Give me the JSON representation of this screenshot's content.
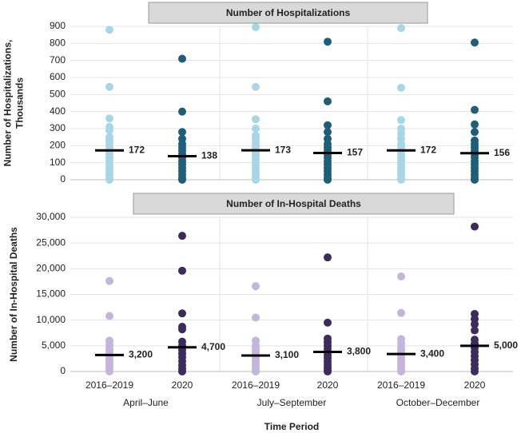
{
  "chart_data": [
    {
      "type": "strip",
      "title": "Number of Hospitalizations",
      "ylabel": [
        "Number of Hospitalizations,",
        "Thousands"
      ],
      "ylim": [
        0,
        900
      ],
      "yticks": [
        0,
        100,
        200,
        300,
        400,
        500,
        600,
        700,
        800,
        900
      ],
      "grid": true,
      "colors": [
        "#a9d6e6",
        "#1f5e78",
        "#a9d6e6",
        "#1f5e78",
        "#a9d6e6",
        "#1f5e78"
      ],
      "points": [
        [
          880,
          545,
          360,
          310,
          290,
          250,
          230,
          210,
          190,
          170,
          150,
          130,
          110,
          90,
          70,
          50,
          30,
          10,
          0
        ],
        [
          710,
          400,
          280,
          240,
          210,
          190,
          170,
          150,
          130,
          110,
          90,
          70,
          50,
          30,
          10,
          0
        ],
        [
          895,
          545,
          355,
          300,
          260,
          240,
          220,
          200,
          180,
          160,
          140,
          120,
          100,
          80,
          60,
          40,
          20,
          0
        ],
        [
          810,
          460,
          320,
          280,
          240,
          210,
          190,
          170,
          150,
          130,
          110,
          90,
          70,
          50,
          30,
          10,
          0
        ],
        [
          890,
          540,
          350,
          300,
          270,
          240,
          210,
          190,
          170,
          150,
          130,
          110,
          90,
          70,
          50,
          30,
          10,
          0
        ],
        [
          805,
          410,
          325,
          280,
          230,
          210,
          190,
          170,
          150,
          130,
          110,
          90,
          70,
          50,
          30,
          10,
          0
        ]
      ],
      "medians": [
        172,
        138,
        173,
        157,
        172,
        156
      ]
    },
    {
      "type": "strip",
      "title": "Number of In-Hospital Deaths",
      "ylabel": [
        "Number of In-Hospital Deaths"
      ],
      "ylim": [
        0,
        30000
      ],
      "yticks": [
        0,
        {
          "value": 5000,
          "label": "5,000"
        },
        {
          "value": 10000,
          "label": "10,000"
        },
        {
          "value": 15000,
          "label": "15,000"
        },
        {
          "value": 20000,
          "label": "20,000"
        },
        {
          "value": 25000,
          "label": "25,000"
        },
        {
          "value": 30000,
          "label": "30,000"
        }
      ],
      "grid": true,
      "colors": [
        "#c4b5dc",
        "#3e2b5e",
        "#c4b5dc",
        "#3e2b5e",
        "#c4b5dc",
        "#3e2b5e"
      ],
      "categories": [
        "2016–2019",
        "2020",
        "2016–2019",
        "2020",
        "2016–2019",
        "2020"
      ],
      "groups": [
        "April–June",
        "July–September",
        "October–December"
      ],
      "xlabel": "Time Period",
      "points": [
        [
          17600,
          10800,
          6000,
          5200,
          4500,
          4000,
          3500,
          3000,
          2500,
          2000,
          1500,
          1000,
          500,
          0
        ],
        [
          26400,
          19600,
          11300,
          8700,
          8200,
          5800,
          5000,
          4200,
          3500,
          2800,
          2000,
          1200,
          500,
          0
        ],
        [
          16600,
          10500,
          6000,
          5000,
          4400,
          3800,
          3200,
          2600,
          2000,
          1400,
          800,
          300,
          0
        ],
        [
          22200,
          9500,
          6400,
          5700,
          5000,
          4400,
          3800,
          3200,
          2600,
          2000,
          1400,
          800,
          300,
          0
        ],
        [
          18500,
          11400,
          6300,
          5400,
          4600,
          4000,
          3400,
          2800,
          2200,
          1600,
          1000,
          400,
          0
        ],
        [
          28200,
          11200,
          10200,
          9200,
          8000,
          6200,
          5400,
          4600,
          3800,
          3000,
          2200,
          1400,
          600,
          0
        ]
      ],
      "medians": [
        3200,
        4700,
        3100,
        3800,
        3400,
        5000
      ],
      "median_labels": [
        "3,200",
        "4,700",
        "3,100",
        "3,800",
        "3,400",
        "5,000"
      ]
    }
  ]
}
